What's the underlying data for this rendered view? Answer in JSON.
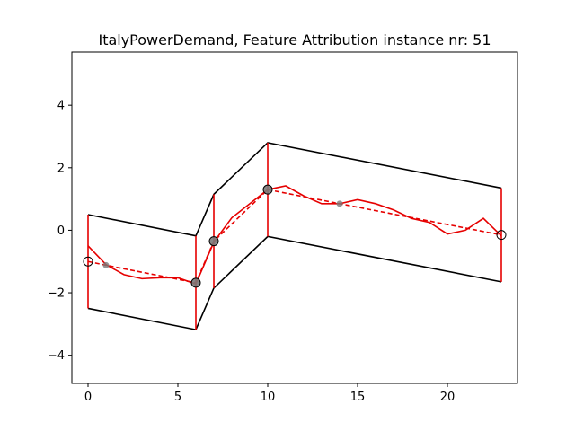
{
  "chart_data": {
    "type": "line",
    "title": "ItalyPowerDemand, Feature Attribution instance nr: 51",
    "xlabel": "",
    "ylabel": "",
    "xlim": [
      -0.9,
      23.9
    ],
    "ylim": [
      -4.9,
      5.7
    ],
    "xticks": [
      0,
      5,
      10,
      15,
      20
    ],
    "yticks": [
      -4,
      -2,
      0,
      2,
      4
    ],
    "grid": false,
    "colors": {
      "series": "#e60000",
      "envelope": "#000000",
      "marker_face": "#7a7a7a"
    },
    "series": [
      {
        "style": "solid",
        "color": "#e60000",
        "x": [
          0,
          1,
          2,
          3,
          4,
          5,
          6,
          7,
          8,
          9,
          10,
          11,
          12,
          13,
          14,
          15,
          16,
          17,
          18,
          19,
          20,
          21,
          22,
          23
        ],
        "y": [
          -0.5,
          -1.1,
          -1.42,
          -1.55,
          -1.52,
          -1.52,
          -1.72,
          -0.38,
          0.4,
          0.85,
          1.3,
          1.42,
          1.1,
          0.85,
          0.85,
          0.98,
          0.85,
          0.65,
          0.38,
          0.25,
          -0.12,
          0.0,
          0.38,
          -0.18
        ]
      },
      {
        "style": "dashed",
        "color": "#e60000",
        "x": [
          0,
          1,
          6,
          7,
          10,
          14,
          23
        ],
        "y": [
          -1.0,
          -1.12,
          -1.68,
          -0.35,
          1.3,
          0.85,
          -0.15
        ]
      }
    ],
    "segment_markers": [
      {
        "x": 0,
        "y": -1.0,
        "filled": false
      },
      {
        "x": 1,
        "y": -1.12,
        "filled": true,
        "small": true
      },
      {
        "x": 6,
        "y": -1.68,
        "filled": true
      },
      {
        "x": 7,
        "y": -0.35,
        "filled": true
      },
      {
        "x": 10,
        "y": 1.3,
        "filled": true
      },
      {
        "x": 14,
        "y": 0.85,
        "filled": true,
        "small": true
      },
      {
        "x": 23,
        "y": -0.15,
        "filled": false
      }
    ],
    "envelope_upper": {
      "x": [
        0,
        6,
        7,
        10,
        23
      ],
      "y": [
        0.5,
        -0.18,
        1.15,
        2.8,
        1.35
      ]
    },
    "envelope_lower": {
      "x": [
        0,
        6,
        7,
        10,
        23
      ],
      "y": [
        -2.5,
        -3.18,
        -1.85,
        -0.2,
        -1.65
      ]
    },
    "vertical_bars": [
      {
        "x": 0,
        "y0": -2.5,
        "y1": 0.5
      },
      {
        "x": 6,
        "y0": -3.18,
        "y1": -0.18
      },
      {
        "x": 7,
        "y0": -1.85,
        "y1": 1.15
      },
      {
        "x": 10,
        "y0": -0.2,
        "y1": 2.8
      },
      {
        "x": 23,
        "y0": -1.65,
        "y1": 1.35
      }
    ]
  }
}
